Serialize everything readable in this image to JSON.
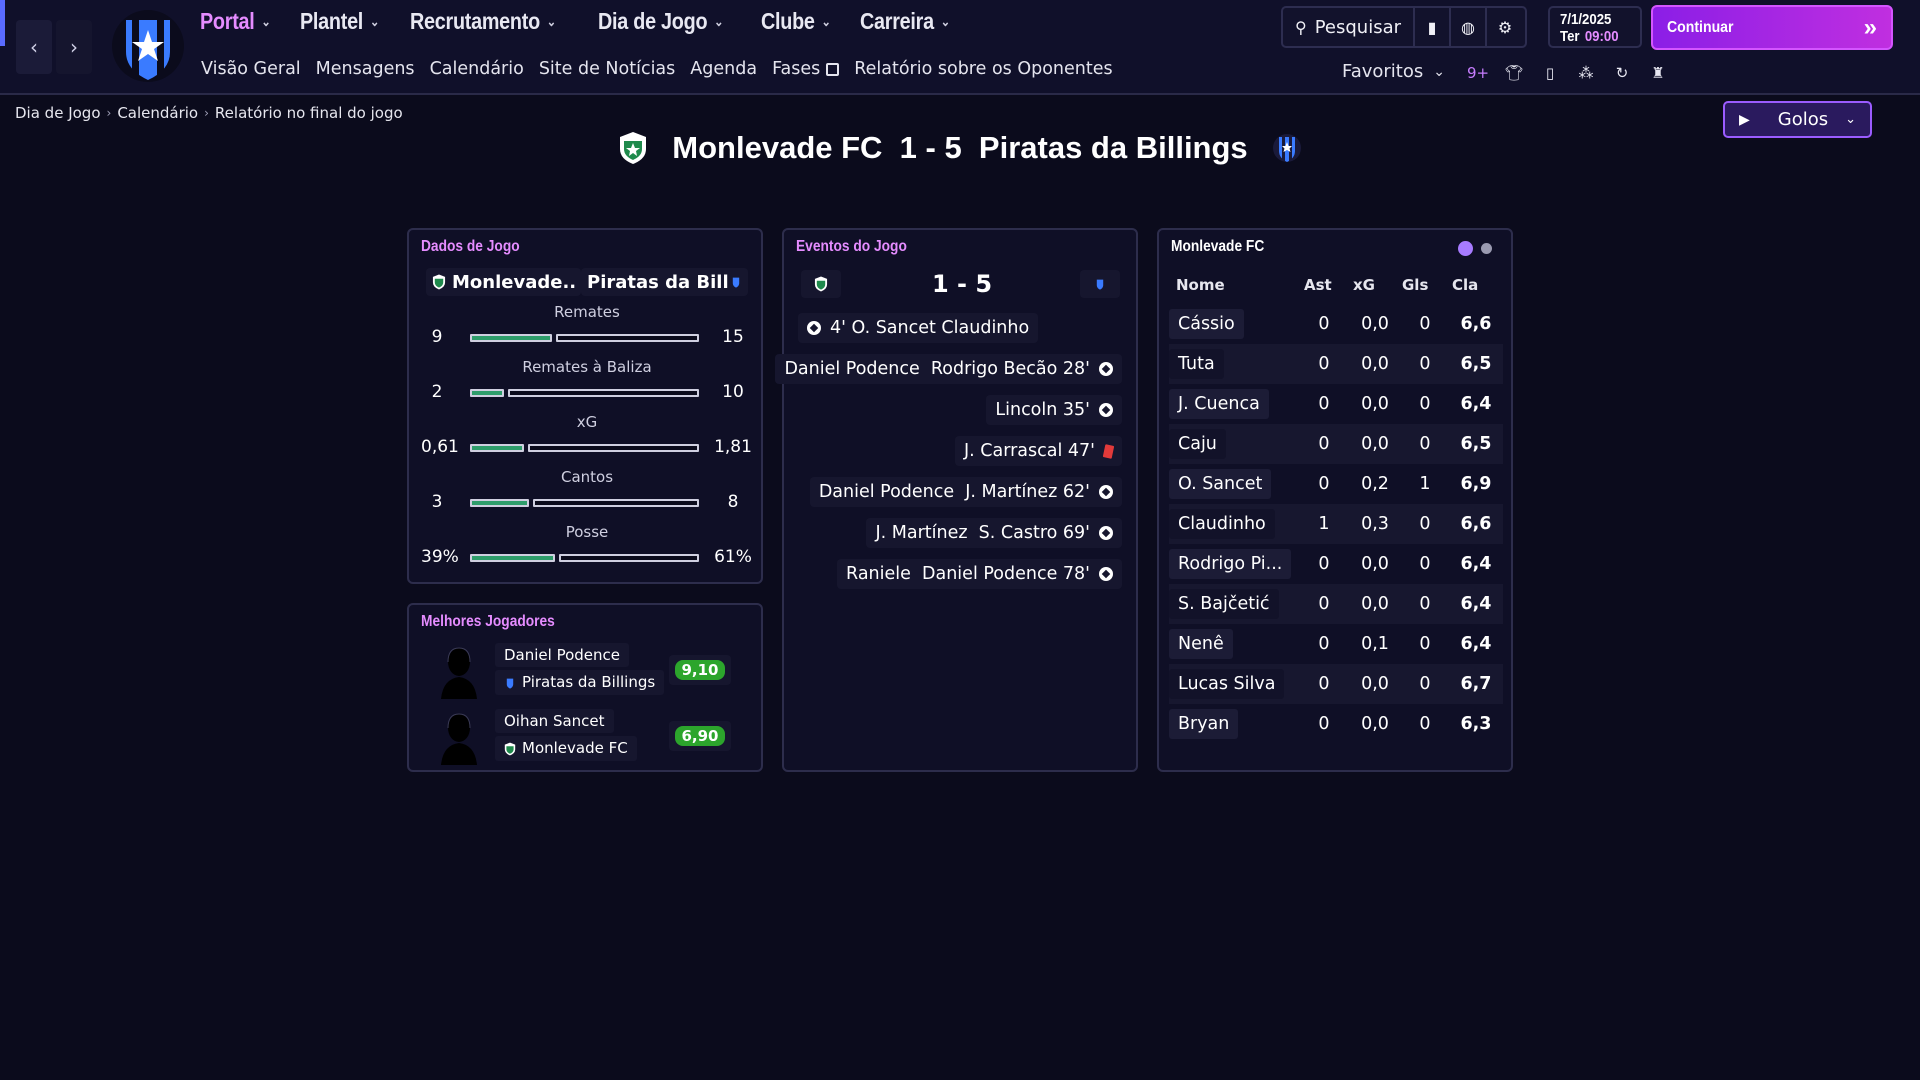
{
  "nav": {
    "main": [
      "Portal",
      "Plantel",
      "Recrutamento",
      "Dia de Jogo",
      "Clube",
      "Carreira"
    ],
    "sub": [
      "Visão Geral",
      "Mensagens",
      "Calendário",
      "Site de Notícias",
      "Agenda",
      "Fases",
      "Relatório sobre os Oponentes"
    ]
  },
  "header": {
    "search_label": "Pesquisar",
    "date": "7/1/2025",
    "day": "Ter",
    "time": "09:00",
    "continue_label": "Continuar",
    "favorites_label": "Favoritos",
    "fav_badge": "9+"
  },
  "breadcrumb": [
    "Dia de Jogo",
    "Calendário",
    "Relatório no final do jogo"
  ],
  "goals_button_label": "Golos",
  "match": {
    "title": "Monlevade FC  1 - 5  Piratas da Billings",
    "home": "Monlevade FC",
    "away": "Piratas da Billings",
    "score": "1 - 5"
  },
  "colors": {
    "accent": "#e58cff",
    "bar_fill": "#2e9d6b",
    "continue": "#a020f0",
    "rating_green": "#2ca52c"
  },
  "match_stats": {
    "title": "Dados de Jogo",
    "home_short": "Monlevade...",
    "away_short": "Piratas da Billi...",
    "rows": [
      {
        "label": "Remates",
        "home": "9",
        "away": "15",
        "home_frac": 0.375,
        "away_frac": 0.625
      },
      {
        "label": "Remates à Baliza",
        "home": "2",
        "away": "10",
        "home_frac": 0.167,
        "away_frac": 0.833
      },
      {
        "label": "xG",
        "home": "0,61",
        "away": "1,81",
        "home_frac": 0.252,
        "away_frac": 0.748
      },
      {
        "label": "Cantos",
        "home": "3",
        "away": "8",
        "home_frac": 0.273,
        "away_frac": 0.727
      },
      {
        "label": "Posse",
        "home": "39%",
        "away": "61%",
        "home_frac": 0.39,
        "away_frac": 0.61
      }
    ]
  },
  "best_players": {
    "title": "Melhores Jogadores",
    "players": [
      {
        "name": "Daniel Podence",
        "club": "Piratas da Billings",
        "rating": "9,10"
      },
      {
        "name": "Oihan Sancet",
        "club": "Monlevade FC",
        "rating": "6,90"
      }
    ]
  },
  "events": {
    "title": "Eventos do Jogo",
    "score": "1 - 5",
    "items": [
      {
        "text": "4' O. Sancet Claudinho",
        "side": "home",
        "icon": "ball-icon"
      },
      {
        "text": "Daniel Podence  Rodrigo Becão 28'",
        "side": "away",
        "icon": "ball-icon"
      },
      {
        "text": "Lincoln 35'",
        "side": "away",
        "icon": "ball-icon"
      },
      {
        "text": "J. Carrascal 47'",
        "side": "away",
        "icon": "red-card-icon"
      },
      {
        "text": "Daniel Podence  J. Martínez 62'",
        "side": "away",
        "icon": "ball-icon"
      },
      {
        "text": "J. Martínez  S. Castro 69'",
        "side": "away",
        "icon": "ball-icon"
      },
      {
        "text": "Raniele  Daniel Podence 78'",
        "side": "away",
        "icon": "ball-icon"
      }
    ]
  },
  "lineup": {
    "title": "Monlevade FC",
    "columns": [
      "Nome",
      "Ast",
      "xG",
      "Gls",
      "Cla"
    ],
    "rows": [
      [
        "Cássio",
        "0",
        "0,0",
        "0",
        "6,6"
      ],
      [
        "Tuta",
        "0",
        "0,0",
        "0",
        "6,5"
      ],
      [
        "J. Cuenca",
        "0",
        "0,0",
        "0",
        "6,4"
      ],
      [
        "Caju",
        "0",
        "0,0",
        "0",
        "6,5"
      ],
      [
        "O. Sancet",
        "0",
        "0,2",
        "1",
        "6,9"
      ],
      [
        "Claudinho",
        "1",
        "0,3",
        "0",
        "6,6"
      ],
      [
        "Rodrigo Pi...",
        "0",
        "0,0",
        "0",
        "6,4"
      ],
      [
        "S. Bajčetić",
        "0",
        "0,0",
        "0",
        "6,4"
      ],
      [
        "Nenê",
        "0",
        "0,1",
        "0",
        "6,4"
      ],
      [
        "Lucas Silva",
        "0",
        "0,0",
        "0",
        "6,7"
      ],
      [
        "Bryan",
        "0",
        "0,0",
        "0",
        "6,3"
      ]
    ]
  }
}
